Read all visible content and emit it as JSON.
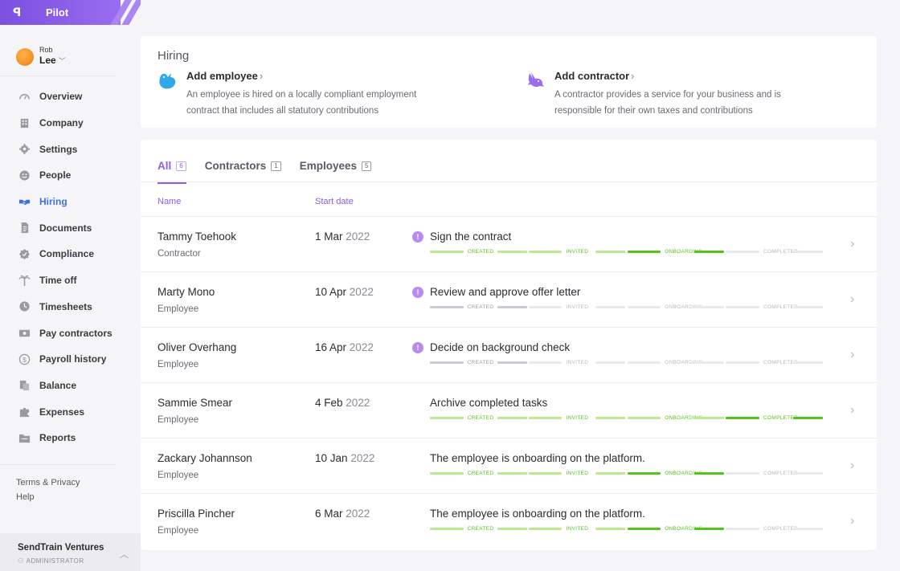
{
  "app": {
    "logo": "ꟼ",
    "name": "Pilot"
  },
  "user": {
    "first": "Rob",
    "last": "Lee"
  },
  "nav": [
    {
      "label": "Overview",
      "icon": "gauge-icon",
      "active": false
    },
    {
      "label": "Company",
      "icon": "building-icon",
      "active": false
    },
    {
      "label": "Settings",
      "icon": "gear-icon",
      "active": false
    },
    {
      "label": "People",
      "icon": "smile-icon",
      "active": false
    },
    {
      "label": "Hiring",
      "icon": "handshake-icon",
      "active": true
    },
    {
      "label": "Documents",
      "icon": "document-icon",
      "active": false
    },
    {
      "label": "Compliance",
      "icon": "badge-check-icon",
      "active": false
    },
    {
      "label": "Time off",
      "icon": "palm-tree-icon",
      "active": false
    },
    {
      "label": "Timesheets",
      "icon": "clock-icon",
      "active": false
    },
    {
      "label": "Pay contractors",
      "icon": "cash-icon",
      "active": false
    },
    {
      "label": "Payroll history",
      "icon": "dollar-circle-icon",
      "active": false
    },
    {
      "label": "Balance",
      "icon": "ledger-icon",
      "active": false
    },
    {
      "label": "Expenses",
      "icon": "puzzle-icon",
      "active": false
    },
    {
      "label": "Reports",
      "icon": "folder-icon",
      "active": false
    }
  ],
  "links": {
    "terms": "Terms & Privacy",
    "help": "Help"
  },
  "org": {
    "name": "SendTrain Ventures",
    "role": "ADMINISTRATOR"
  },
  "hiring": {
    "title": "Hiring",
    "employee": {
      "title": "Add employee",
      "chev": "›",
      "desc": "An employee is hired on a locally compliant employment contract that includes all statutory contributions"
    },
    "contractor": {
      "title": "Add contractor",
      "chev": "›",
      "desc": "A contractor provides a service for your business and is responsible for their own taxes and contributions"
    }
  },
  "tabs": [
    {
      "label": "All",
      "count": "6",
      "active": true
    },
    {
      "label": "Contractors",
      "count": "1",
      "active": false
    },
    {
      "label": "Employees",
      "count": "5",
      "active": false
    }
  ],
  "columns": {
    "name": "Name",
    "start": "Start date"
  },
  "stages": [
    "CREATED",
    "INVITED",
    "ONBOARDING",
    "COMPLETED"
  ],
  "colors": {
    "green": "#55c41a",
    "lightGreen": "#bde98f",
    "grey": "#c9ccd4",
    "faint": "#e9eaee",
    "purple": "#8f5be8"
  },
  "rows": [
    {
      "name": "Tammy Toehook",
      "type": "Contractor",
      "day": "1 Mar",
      "year": "2022",
      "alert": true,
      "task": "Sign the contract",
      "segments": [
        "light",
        "light",
        "light",
        "light",
        "green",
        "green",
        "faint",
        "faint"
      ],
      "labels": [
        "green",
        "green",
        "green",
        "faint"
      ]
    },
    {
      "name": "Marty Mono",
      "type": "Employee",
      "day": "10 Apr",
      "year": "2022",
      "alert": true,
      "task": "Review and approve offer letter",
      "segments": [
        "grey",
        "grey",
        "faint",
        "faint",
        "faint",
        "faint",
        "faint",
        "faint"
      ],
      "labels": [
        "grey",
        "faint",
        "faint",
        "faint"
      ]
    },
    {
      "name": "Oliver Overhang",
      "type": "Employee",
      "day": "16 Apr",
      "year": "2022",
      "alert": true,
      "task": "Decide on background check",
      "segments": [
        "grey",
        "grey",
        "faint",
        "faint",
        "faint",
        "faint",
        "faint",
        "faint"
      ],
      "labels": [
        "grey",
        "faint",
        "faint",
        "faint"
      ]
    },
    {
      "name": "Sammie Smear",
      "type": "Employee",
      "day": "4 Feb",
      "year": "2022",
      "alert": false,
      "task": "Archive completed tasks",
      "segments": [
        "light",
        "light",
        "light",
        "light",
        "light",
        "light",
        "green",
        "green"
      ],
      "labels": [
        "green",
        "green",
        "green",
        "green"
      ]
    },
    {
      "name": "Zackary Johannson",
      "type": "Employee",
      "day": "10 Jan",
      "year": "2022",
      "alert": false,
      "task": "The employee is onboarding on the platform.",
      "segments": [
        "light",
        "light",
        "light",
        "light",
        "green",
        "green",
        "faint",
        "faint"
      ],
      "labels": [
        "green",
        "green",
        "green",
        "faint"
      ]
    },
    {
      "name": "Priscilla Pincher",
      "type": "Employee",
      "day": "6 Mar",
      "year": "2022",
      "alert": false,
      "task": "The employee is onboarding on the platform.",
      "segments": [
        "light",
        "light",
        "light",
        "light",
        "green",
        "green",
        "faint",
        "faint"
      ],
      "labels": [
        "green",
        "green",
        "green",
        "faint"
      ]
    }
  ]
}
